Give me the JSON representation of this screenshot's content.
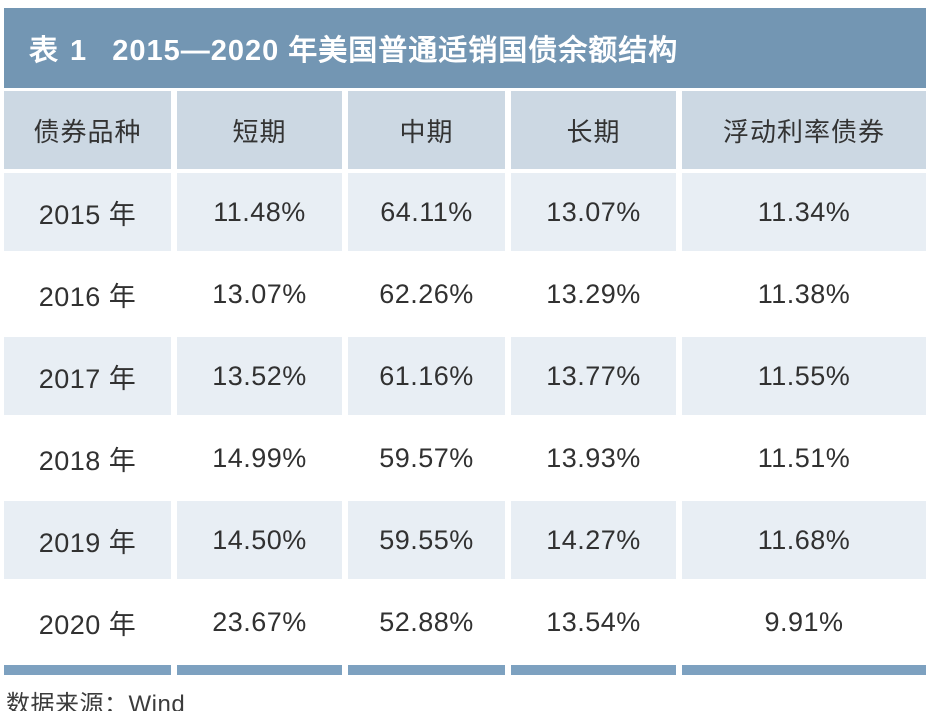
{
  "header": {
    "title_tag": "表 1",
    "title_text": "2015—2020 年美国普通适销国债余额结构"
  },
  "chart_data": {
    "type": "table",
    "title": "表 1 2015—2020 年美国普通适销国债余额结构",
    "columns": [
      "债券品种",
      "短期",
      "中期",
      "长期",
      "浮动利率债券"
    ],
    "rows": [
      [
        "2015 年",
        "11.48%",
        "64.11%",
        "13.07%",
        "11.34%"
      ],
      [
        "2016 年",
        "13.07%",
        "62.26%",
        "13.29%",
        "11.38%"
      ],
      [
        "2017 年",
        "13.52%",
        "61.16%",
        "13.77%",
        "11.55%"
      ],
      [
        "2018 年",
        "14.99%",
        "59.57%",
        "13.93%",
        "11.51%"
      ],
      [
        "2019 年",
        "14.50%",
        "59.55%",
        "14.27%",
        "11.68%"
      ],
      [
        "2020 年",
        "23.67%",
        "52.88%",
        "13.54%",
        "9.91%"
      ]
    ]
  },
  "footer": {
    "source": "数据来源：Wind"
  },
  "colors": {
    "title_bar_bg": "#7396b3",
    "header_row_bg": "#ccd8e3",
    "odd_row_bg": "#e8eef4",
    "even_row_bg": "#ffffff",
    "bottom_strip": "#7da1c0",
    "title_text": "#ffffff",
    "body_text": "#313131"
  }
}
